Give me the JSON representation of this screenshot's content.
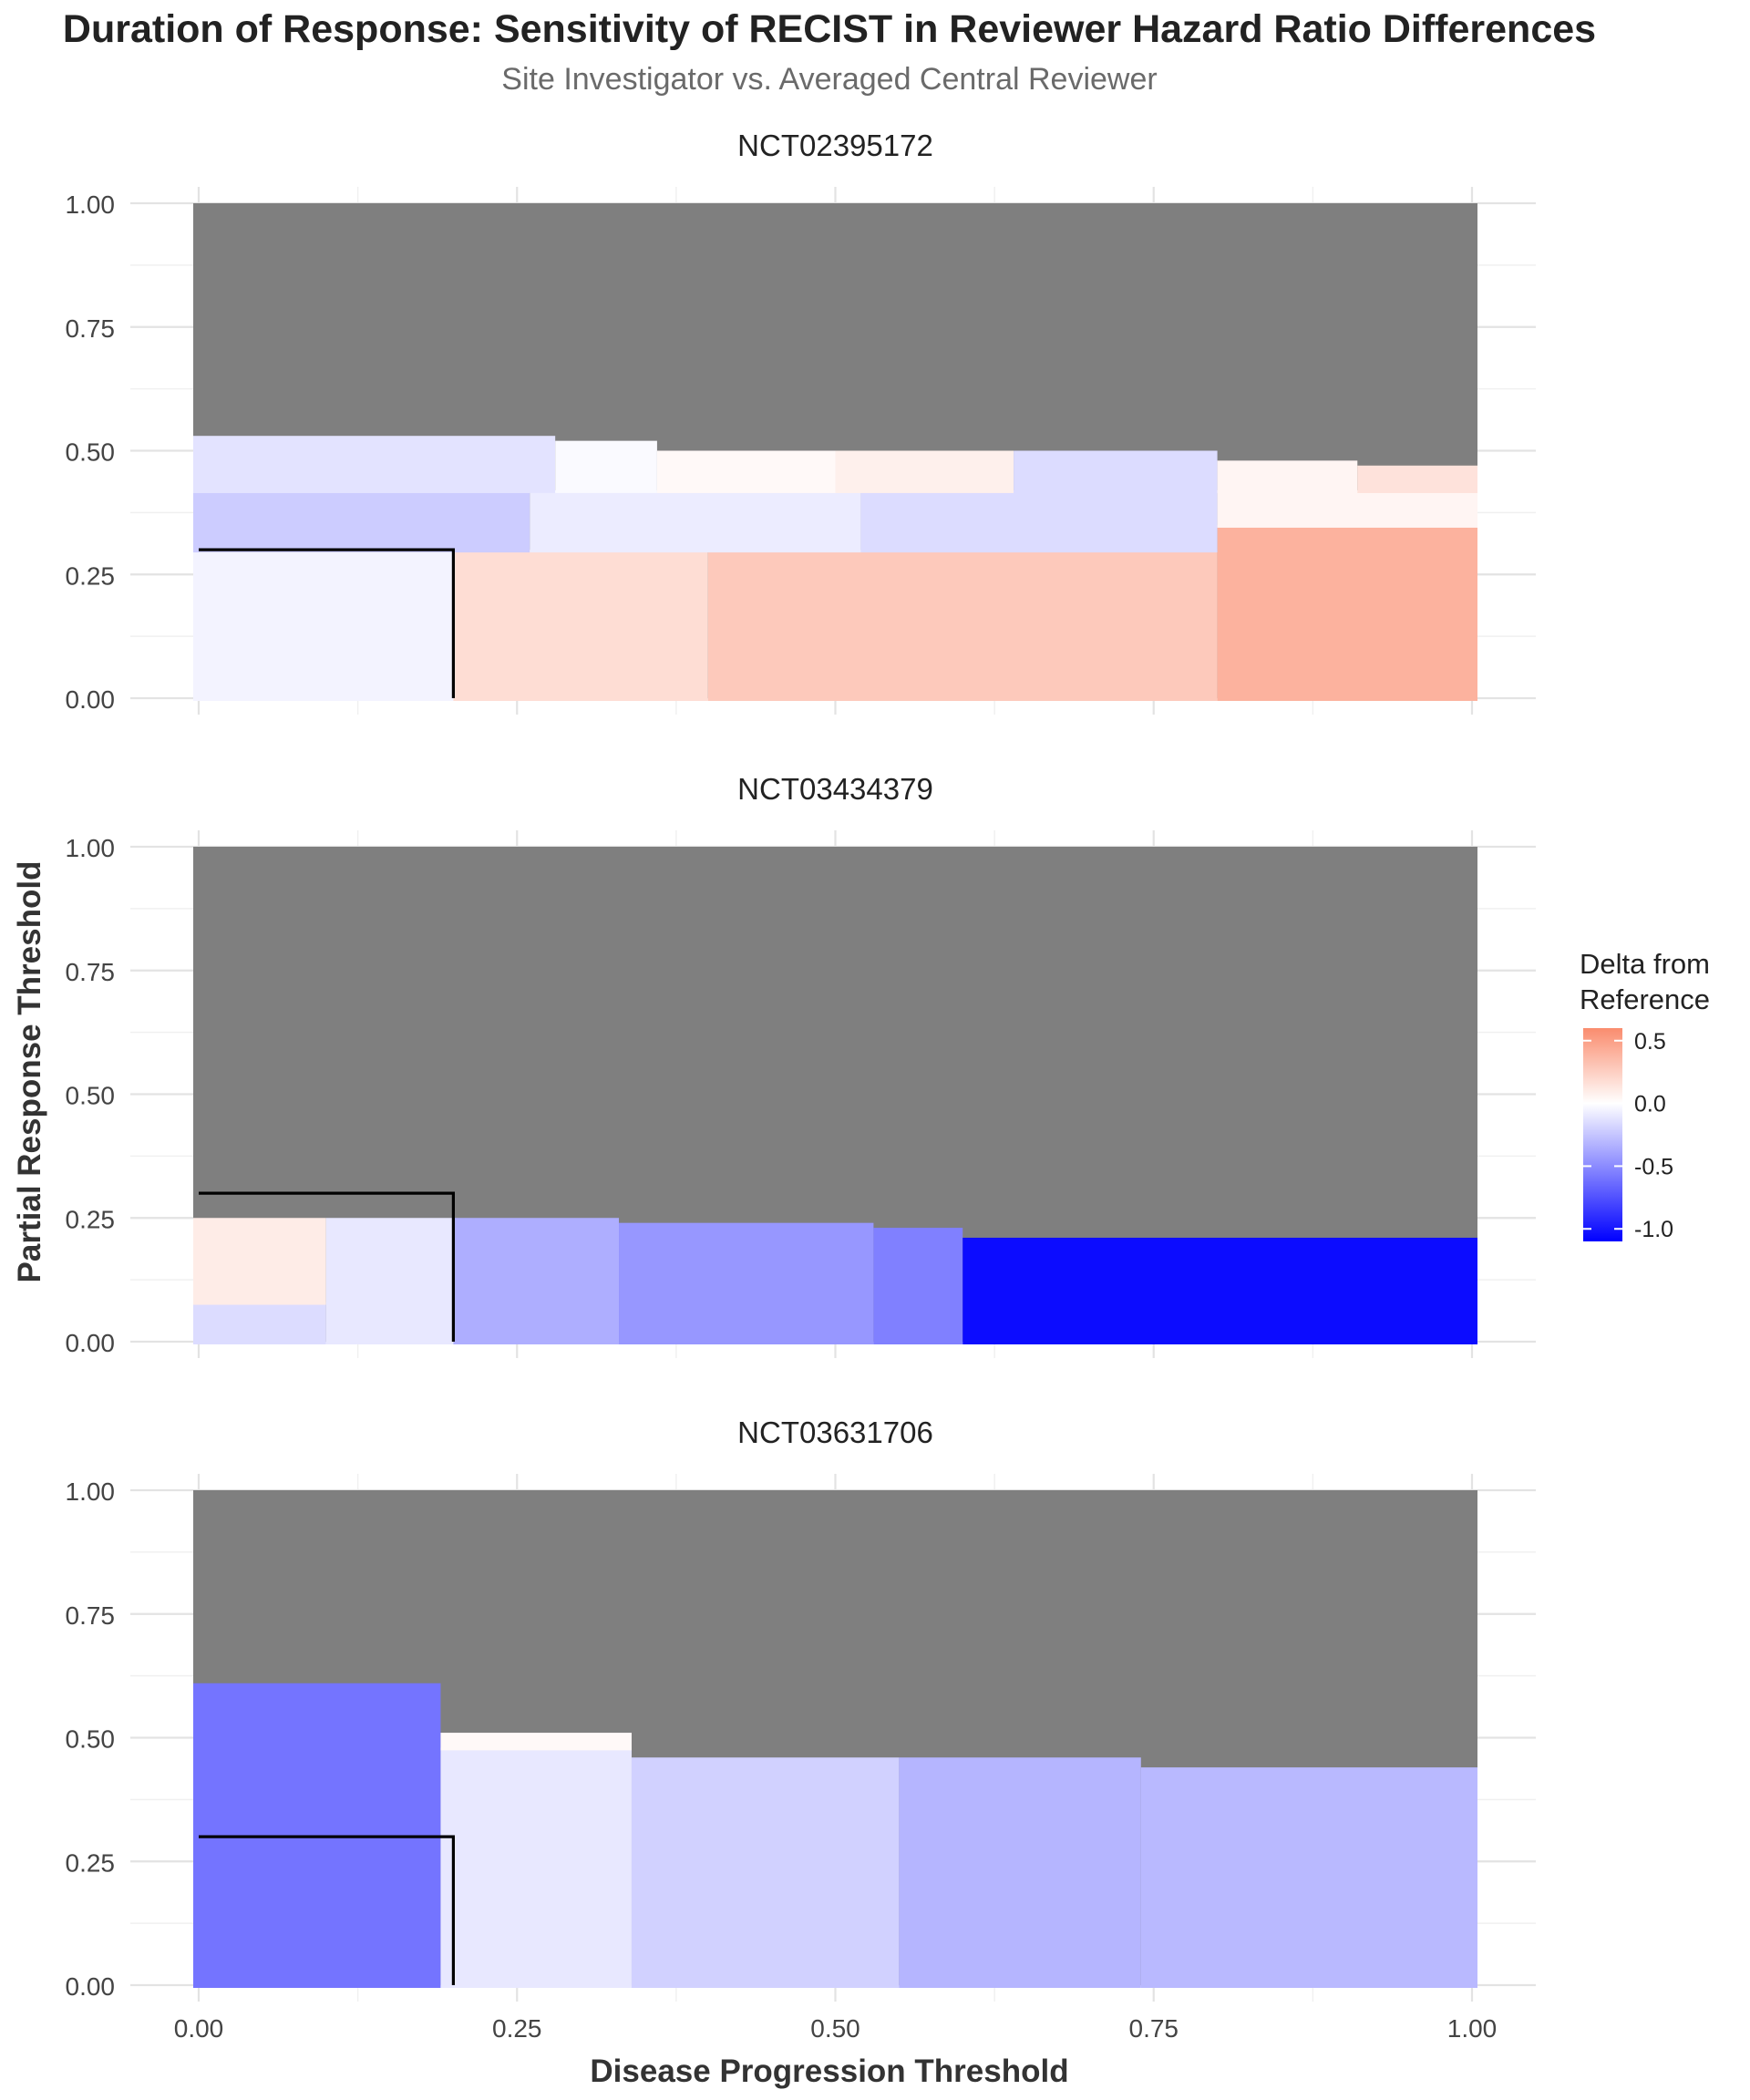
{
  "chart_data": {
    "type": "heatmap",
    "title": "Duration of Response: Sensitivity of RECIST in Reviewer Hazard Ratio Differences",
    "subtitle": "Site Investigator vs. Averaged Central Reviewer",
    "xlabel": "Disease Progression Threshold",
    "ylabel": "Partial Response Threshold",
    "xlim": [
      0,
      1
    ],
    "ylim": [
      0,
      1
    ],
    "x_ticks": [
      "0.00",
      "0.25",
      "0.50",
      "0.75",
      "1.00"
    ],
    "y_ticks": [
      "0.00",
      "0.25",
      "0.50",
      "0.75",
      "1.00"
    ],
    "grid": true,
    "na_color": "#7f7f7f",
    "reference_point": {
      "x": 0.2,
      "y": 0.3
    },
    "legend": {
      "title_line1": "Delta from",
      "title_line2": "Reference",
      "position": "right",
      "labels": [
        "0.5",
        "0.0",
        "-0.5",
        "-1.0"
      ],
      "values": [
        0.5,
        0.0,
        -0.5,
        -1.0
      ],
      "min": -1.1,
      "max": 0.6,
      "colors": {
        "low": "#0000ff",
        "mid": "#ffffff",
        "high": "#fa8c6e"
      }
    },
    "panels": [
      {
        "name": "NCT02395172",
        "regions": [
          {
            "x0": 0.0,
            "x1": 0.2,
            "y0": 0.0,
            "y1": 0.3,
            "value": -0.05
          },
          {
            "x0": 0.2,
            "x1": 0.4,
            "y0": 0.0,
            "y1": 0.3,
            "value": 0.18
          },
          {
            "x0": 0.4,
            "x1": 0.8,
            "y0": 0.0,
            "y1": 0.3,
            "value": 0.28
          },
          {
            "x0": 0.8,
            "x1": 1.0,
            "y0": 0.0,
            "y1": 0.35,
            "value": 0.4
          },
          {
            "x0": 0.0,
            "x1": 0.26,
            "y0": 0.3,
            "y1": 0.42,
            "value": -0.22
          },
          {
            "x0": 0.26,
            "x1": 0.52,
            "y0": 0.3,
            "y1": 0.42,
            "value": -0.08
          },
          {
            "x0": 0.52,
            "x1": 0.8,
            "y0": 0.3,
            "y1": 0.42,
            "value": -0.15
          },
          {
            "x0": 0.8,
            "x1": 1.0,
            "y0": 0.35,
            "y1": 0.42,
            "value": 0.05
          },
          {
            "x0": 0.0,
            "x1": 0.28,
            "y0": 0.42,
            "y1": 0.53,
            "value": -0.12
          },
          {
            "x0": 0.28,
            "x1": 0.36,
            "y0": 0.42,
            "y1": 0.52,
            "value": -0.02
          },
          {
            "x0": 0.36,
            "x1": 0.5,
            "y0": 0.42,
            "y1": 0.5,
            "value": 0.03
          },
          {
            "x0": 0.5,
            "x1": 0.64,
            "y0": 0.42,
            "y1": 0.5,
            "value": 0.08
          },
          {
            "x0": 0.64,
            "x1": 0.8,
            "y0": 0.42,
            "y1": 0.5,
            "value": -0.15
          },
          {
            "x0": 0.8,
            "x1": 0.91,
            "y0": 0.42,
            "y1": 0.48,
            "value": 0.05
          },
          {
            "x0": 0.91,
            "x1": 1.0,
            "y0": 0.42,
            "y1": 0.47,
            "value": 0.15
          }
        ]
      },
      {
        "name": "NCT03434379",
        "regions": [
          {
            "x0": 0.0,
            "x1": 0.1,
            "y0": 0.0,
            "y1": 0.08,
            "value": -0.15
          },
          {
            "x0": 0.0,
            "x1": 0.1,
            "y0": 0.08,
            "y1": 0.25,
            "value": 0.1
          },
          {
            "x0": 0.1,
            "x1": 0.2,
            "y0": 0.0,
            "y1": 0.25,
            "value": -0.1
          },
          {
            "x0": 0.2,
            "x1": 0.33,
            "y0": 0.0,
            "y1": 0.25,
            "value": -0.35
          },
          {
            "x0": 0.33,
            "x1": 0.53,
            "y0": 0.0,
            "y1": 0.24,
            "value": -0.45
          },
          {
            "x0": 0.53,
            "x1": 0.6,
            "y0": 0.0,
            "y1": 0.23,
            "value": -0.55
          },
          {
            "x0": 0.6,
            "x1": 1.0,
            "y0": 0.0,
            "y1": 0.21,
            "value": -1.05
          }
        ]
      },
      {
        "name": "NCT03631706",
        "regions": [
          {
            "x0": 0.0,
            "x1": 0.19,
            "y0": 0.0,
            "y1": 0.61,
            "value": -0.6
          },
          {
            "x0": 0.19,
            "x1": 0.34,
            "y0": 0.0,
            "y1": 0.48,
            "value": -0.1
          },
          {
            "x0": 0.19,
            "x1": 0.34,
            "y0": 0.48,
            "y1": 0.51,
            "value": 0.03
          },
          {
            "x0": 0.34,
            "x1": 0.55,
            "y0": 0.0,
            "y1": 0.46,
            "value": -0.2
          },
          {
            "x0": 0.55,
            "x1": 0.74,
            "y0": 0.0,
            "y1": 0.46,
            "value": -0.32
          },
          {
            "x0": 0.74,
            "x1": 1.0,
            "y0": 0.0,
            "y1": 0.44,
            "value": -0.3
          }
        ]
      }
    ]
  }
}
